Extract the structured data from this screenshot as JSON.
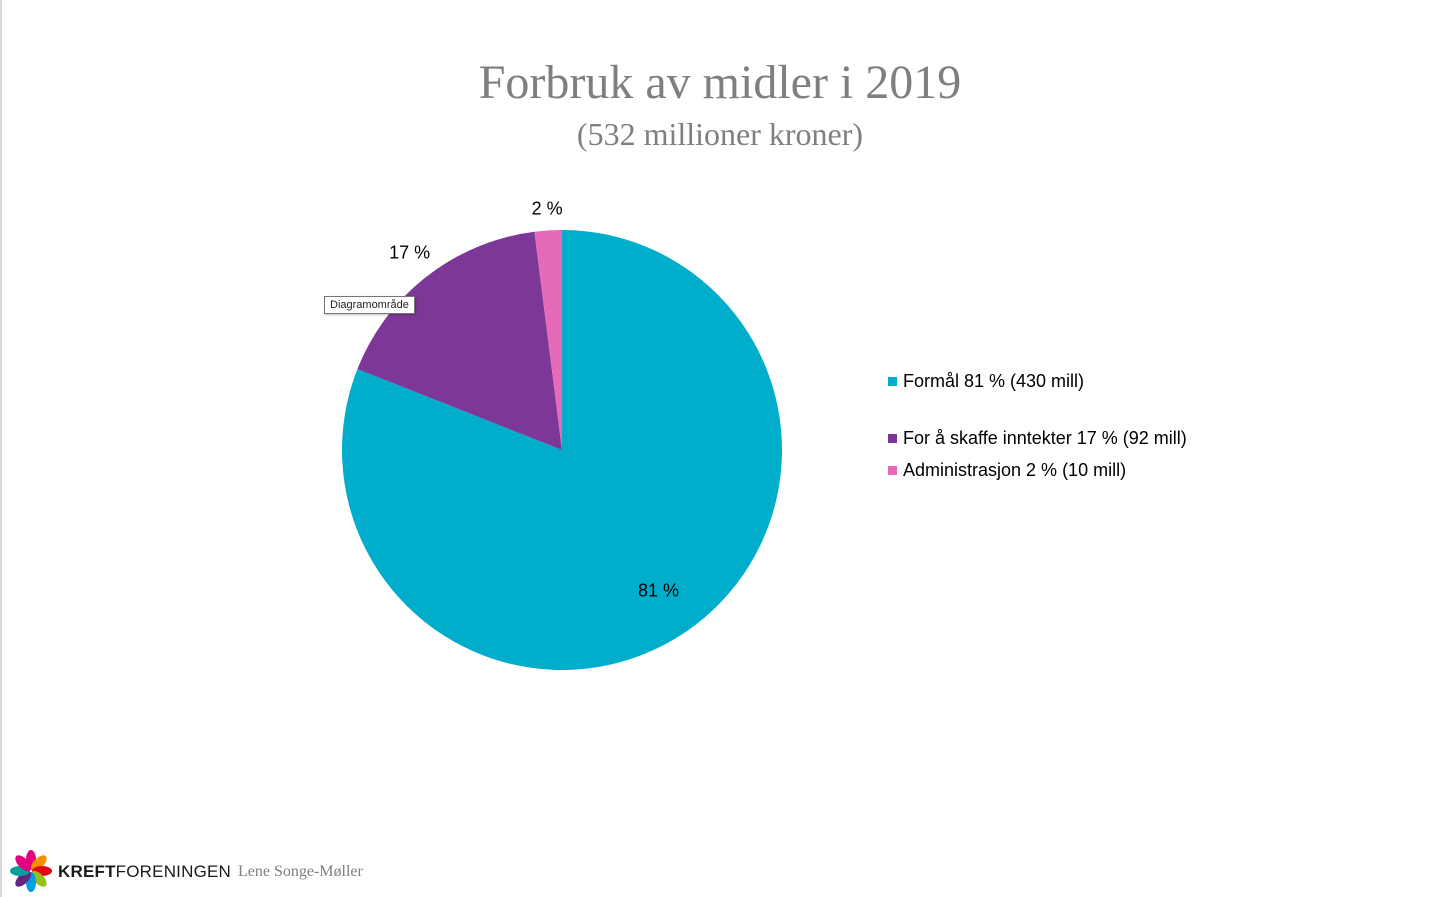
{
  "slide": {
    "title": "Forbruk av midler i 2019",
    "subtitle": "(532 millioner kroner)",
    "tooltip": "Diagramområde",
    "footer": {
      "brand_bold": "KREFT",
      "brand_regular": "FORENINGEN",
      "author": "Lene Songe-Møller",
      "logo_icon": "kreftforeningen-flower-logo-icon"
    }
  },
  "chart_data": {
    "type": "pie",
    "title": "Forbruk av midler i 2019",
    "subtitle": "(532 millioner kroner)",
    "start_angle_deg": 0,
    "direction": "clockwise",
    "legend_position": "right",
    "slices": [
      {
        "legend": "Formål 81 % (430 mill)",
        "value": 81,
        "data_label": "81 %",
        "color": "#00AECB"
      },
      {
        "legend": "For å skaffe inntekter 17 % (92 mill)",
        "value": 17,
        "data_label": "17 %",
        "color": "#7D3799"
      },
      {
        "legend": "Administrasjon 2 % (10 mill)",
        "value": 2,
        "data_label": "2 %",
        "color": "#E56BB8"
      }
    ]
  }
}
